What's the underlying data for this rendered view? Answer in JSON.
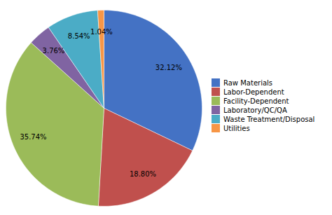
{
  "chart_data": {
    "type": "pie",
    "categories": [
      "Raw Materials",
      "Labor-Dependent",
      "Facility-Dependent",
      "Laboratory/QC/QA",
      "Waste Treatment/Disposal",
      "Utilities"
    ],
    "values": [
      32.12,
      18.8,
      35.74,
      3.76,
      8.54,
      1.04
    ],
    "value_labels": [
      "32.12%",
      "18.80%",
      "35.74%",
      "3.76%",
      "8.54%",
      "1.04%"
    ],
    "colors": [
      "#4472C4",
      "#C0504D",
      "#9BBB59",
      "#8064A2",
      "#4BACC6",
      "#F79646"
    ],
    "data_labels": true,
    "legend": "right"
  }
}
